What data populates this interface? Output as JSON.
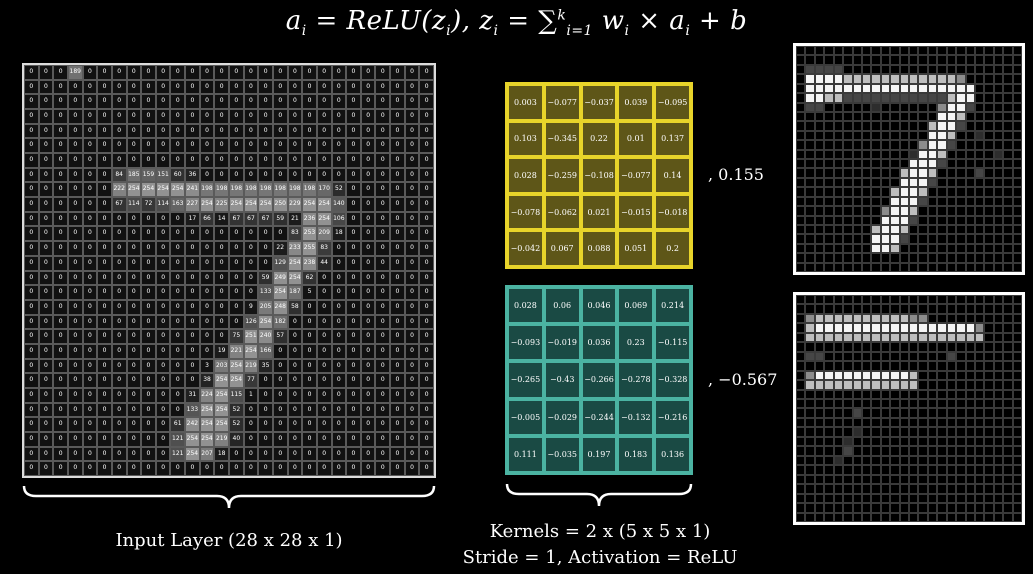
{
  "formula": {
    "a_i": "a",
    "sub_i": "i",
    "eq": " = ",
    "relu": "ReLU(z",
    "relu_close": "),",
    "z": " z",
    "sum": "∑",
    "sum_top": "k",
    "sum_bottom": "i=1",
    "w": " w",
    "times": " × a",
    "plus_b": "  +  b"
  },
  "input_layer": {
    "label": "Input Layer (28 x 28 x 1)",
    "rows": [
      [
        0,
        0,
        0,
        189,
        0,
        0,
        0,
        0,
        0,
        0,
        0,
        0,
        0,
        0,
        0,
        0,
        0,
        0,
        0,
        0,
        0,
        0,
        0,
        0,
        0,
        0,
        0,
        0
      ],
      [
        0,
        0,
        0,
        0,
        0,
        0,
        0,
        0,
        0,
        0,
        0,
        0,
        0,
        0,
        0,
        0,
        0,
        0,
        0,
        0,
        0,
        0,
        0,
        0,
        0,
        0,
        0,
        0
      ],
      [
        0,
        0,
        0,
        0,
        0,
        0,
        0,
        0,
        0,
        0,
        0,
        0,
        0,
        0,
        0,
        0,
        0,
        0,
        0,
        0,
        0,
        0,
        0,
        0,
        0,
        0,
        0,
        0
      ],
      [
        0,
        0,
        0,
        0,
        0,
        0,
        0,
        0,
        0,
        0,
        0,
        0,
        0,
        0,
        0,
        0,
        0,
        0,
        0,
        0,
        0,
        0,
        0,
        0,
        0,
        0,
        0,
        0
      ],
      [
        0,
        0,
        0,
        0,
        0,
        0,
        0,
        0,
        0,
        0,
        0,
        0,
        0,
        0,
        0,
        0,
        0,
        0,
        0,
        0,
        0,
        0,
        0,
        0,
        0,
        0,
        0,
        0
      ],
      [
        0,
        0,
        0,
        0,
        0,
        0,
        0,
        0,
        0,
        0,
        0,
        0,
        0,
        0,
        0,
        0,
        0,
        0,
        0,
        0,
        0,
        0,
        0,
        0,
        0,
        0,
        0,
        0
      ],
      [
        0,
        0,
        0,
        0,
        0,
        0,
        0,
        0,
        0,
        0,
        0,
        0,
        0,
        0,
        0,
        0,
        0,
        0,
        0,
        0,
        0,
        0,
        0,
        0,
        0,
        0,
        0,
        0
      ],
      [
        0,
        0,
        0,
        0,
        0,
        0,
        84,
        185,
        159,
        151,
        60,
        36,
        0,
        0,
        0,
        0,
        0,
        0,
        0,
        0,
        0,
        0,
        0,
        0,
        0,
        0,
        0,
        0
      ],
      [
        0,
        0,
        0,
        0,
        0,
        0,
        222,
        254,
        254,
        254,
        254,
        241,
        198,
        198,
        198,
        198,
        198,
        198,
        198,
        198,
        170,
        52,
        0,
        0,
        0,
        0,
        0,
        0
      ],
      [
        0,
        0,
        0,
        0,
        0,
        0,
        67,
        114,
        72,
        114,
        163,
        227,
        254,
        225,
        254,
        254,
        254,
        250,
        229,
        254,
        254,
        140,
        0,
        0,
        0,
        0,
        0,
        0
      ],
      [
        0,
        0,
        0,
        0,
        0,
        0,
        0,
        0,
        0,
        0,
        0,
        17,
        66,
        14,
        67,
        67,
        67,
        59,
        21,
        236,
        254,
        106,
        0,
        0,
        0,
        0,
        0,
        0
      ],
      [
        0,
        0,
        0,
        0,
        0,
        0,
        0,
        0,
        0,
        0,
        0,
        0,
        0,
        0,
        0,
        0,
        0,
        0,
        83,
        253,
        209,
        18,
        0,
        0,
        0,
        0,
        0,
        0
      ],
      [
        0,
        0,
        0,
        0,
        0,
        0,
        0,
        0,
        0,
        0,
        0,
        0,
        0,
        0,
        0,
        0,
        0,
        22,
        233,
        255,
        83,
        0,
        0,
        0,
        0,
        0,
        0,
        0
      ],
      [
        0,
        0,
        0,
        0,
        0,
        0,
        0,
        0,
        0,
        0,
        0,
        0,
        0,
        0,
        0,
        0,
        0,
        129,
        254,
        238,
        44,
        0,
        0,
        0,
        0,
        0,
        0,
        0
      ],
      [
        0,
        0,
        0,
        0,
        0,
        0,
        0,
        0,
        0,
        0,
        0,
        0,
        0,
        0,
        0,
        0,
        59,
        249,
        254,
        62,
        0,
        0,
        0,
        0,
        0,
        0,
        0,
        0
      ],
      [
        0,
        0,
        0,
        0,
        0,
        0,
        0,
        0,
        0,
        0,
        0,
        0,
        0,
        0,
        0,
        0,
        133,
        254,
        187,
        5,
        0,
        0,
        0,
        0,
        0,
        0,
        0,
        0
      ],
      [
        0,
        0,
        0,
        0,
        0,
        0,
        0,
        0,
        0,
        0,
        0,
        0,
        0,
        0,
        0,
        9,
        205,
        248,
        58,
        0,
        0,
        0,
        0,
        0,
        0,
        0,
        0,
        0
      ],
      [
        0,
        0,
        0,
        0,
        0,
        0,
        0,
        0,
        0,
        0,
        0,
        0,
        0,
        0,
        0,
        126,
        254,
        182,
        0,
        0,
        0,
        0,
        0,
        0,
        0,
        0,
        0,
        0
      ],
      [
        0,
        0,
        0,
        0,
        0,
        0,
        0,
        0,
        0,
        0,
        0,
        0,
        0,
        0,
        75,
        251,
        240,
        57,
        0,
        0,
        0,
        0,
        0,
        0,
        0,
        0,
        0,
        0
      ],
      [
        0,
        0,
        0,
        0,
        0,
        0,
        0,
        0,
        0,
        0,
        0,
        0,
        0,
        19,
        221,
        254,
        166,
        0,
        0,
        0,
        0,
        0,
        0,
        0,
        0,
        0,
        0,
        0
      ],
      [
        0,
        0,
        0,
        0,
        0,
        0,
        0,
        0,
        0,
        0,
        0,
        0,
        3,
        203,
        254,
        219,
        35,
        0,
        0,
        0,
        0,
        0,
        0,
        0,
        0,
        0,
        0,
        0
      ],
      [
        0,
        0,
        0,
        0,
        0,
        0,
        0,
        0,
        0,
        0,
        0,
        0,
        38,
        254,
        254,
        77,
        0,
        0,
        0,
        0,
        0,
        0,
        0,
        0,
        0,
        0,
        0,
        0
      ],
      [
        0,
        0,
        0,
        0,
        0,
        0,
        0,
        0,
        0,
        0,
        0,
        31,
        224,
        254,
        115,
        1,
        0,
        0,
        0,
        0,
        0,
        0,
        0,
        0,
        0,
        0,
        0,
        0
      ],
      [
        0,
        0,
        0,
        0,
        0,
        0,
        0,
        0,
        0,
        0,
        0,
        133,
        254,
        254,
        52,
        0,
        0,
        0,
        0,
        0,
        0,
        0,
        0,
        0,
        0,
        0,
        0,
        0
      ],
      [
        0,
        0,
        0,
        0,
        0,
        0,
        0,
        0,
        0,
        0,
        61,
        242,
        254,
        254,
        52,
        0,
        0,
        0,
        0,
        0,
        0,
        0,
        0,
        0,
        0,
        0,
        0,
        0
      ],
      [
        0,
        0,
        0,
        0,
        0,
        0,
        0,
        0,
        0,
        0,
        121,
        254,
        254,
        219,
        40,
        0,
        0,
        0,
        0,
        0,
        0,
        0,
        0,
        0,
        0,
        0,
        0,
        0
      ],
      [
        0,
        0,
        0,
        0,
        0,
        0,
        0,
        0,
        0,
        0,
        121,
        254,
        207,
        18,
        0,
        0,
        0,
        0,
        0,
        0,
        0,
        0,
        0,
        0,
        0,
        0,
        0,
        0
      ],
      [
        0,
        0,
        0,
        0,
        0,
        0,
        0,
        0,
        0,
        0,
        0,
        0,
        0,
        0,
        0,
        0,
        0,
        0,
        0,
        0,
        0,
        0,
        0,
        0,
        0,
        0,
        0,
        0
      ]
    ]
  },
  "kernels": {
    "label": "Kernels =  2 x (5 x 5 x 1)",
    "stride_label": "Stride = 1, Activation = ReLU",
    "kernel_1": {
      "fill": "#5e5618",
      "border": "#e8d42a",
      "bias": ", 0.155",
      "values": [
        [
          "0.003",
          "−0.077",
          "−0.037",
          "0.039",
          "−0.095"
        ],
        [
          "0.103",
          "−0.345",
          "0.22",
          "0.01",
          "0.137"
        ],
        [
          "0.028",
          "−0.259",
          "−0.108",
          "−0.077",
          "0.14"
        ],
        [
          "−0.078",
          "−0.062",
          "0.021",
          "−0.015",
          "−0.018"
        ],
        [
          "−0.042",
          "0.067",
          "0.088",
          "0.051",
          "0.2"
        ]
      ]
    },
    "kernel_2": {
      "fill": "#1a4a44",
      "border": "#4bb3a2",
      "bias": ", −0.567",
      "values": [
        [
          "0.028",
          "0.06",
          "0.046",
          "0.069",
          "0.214"
        ],
        [
          "−0.093",
          "−0.019",
          "0.036",
          "0.23",
          "−0.115"
        ],
        [
          "−0.265",
          "−0.43",
          "−0.266",
          "−0.278",
          "−0.328"
        ],
        [
          "−0.005",
          "−0.029",
          "−0.244",
          "−0.132",
          "−0.216"
        ],
        [
          "0.111",
          "−0.035",
          "0.197",
          "0.183",
          "0.136"
        ]
      ]
    }
  },
  "feature_maps": {
    "size": 24,
    "map_1_rows": [
      "........................",
      "........................",
      ".aaaa...................",
      ".FFFFddddddddddddc......",
      ".FFFFFFFFFFFFFFFFFF.....",
      ".FFddaaaaaaaaaaadFF.....",
      ".aa.....b......cFFa.....",
      "...............FFd......",
      "..............dFFa......",
      "..............FFd..b....",
      ".............cFFa.......",
      "............bFFd.....b..",
      "............FFFa........",
      "...........dFFd....a....",
      "...........FFFa.........",
      "..........dFFd..........",
      "..........FFFa..........",
      ".........cFFd...........",
      ".........FFFa...........",
      "........dFFd............",
      "........FFFa............",
      "........FFd.............",
      "........................",
      "........................"
    ],
    "map_2_rows": [
      "........................",
      "........................",
      ".cddddddddddcc..........",
      ".dFFFFFFFFFFFFFFFFFc....",
      ".ddddddddddddddddddd....",
      "........................",
      ".aa.............a.......",
      "........................",
      ".cFFFFFFFFFFd...........",
      ".dddddddddddd...........",
      "........................",
      "........................",
      "......a.................",
      "........................",
      "......b.................",
      ".....b..................",
      ".....a..................",
      "....b...................",
      "........................",
      "........................",
      "........................",
      "........................",
      "........................",
      "........................"
    ]
  }
}
